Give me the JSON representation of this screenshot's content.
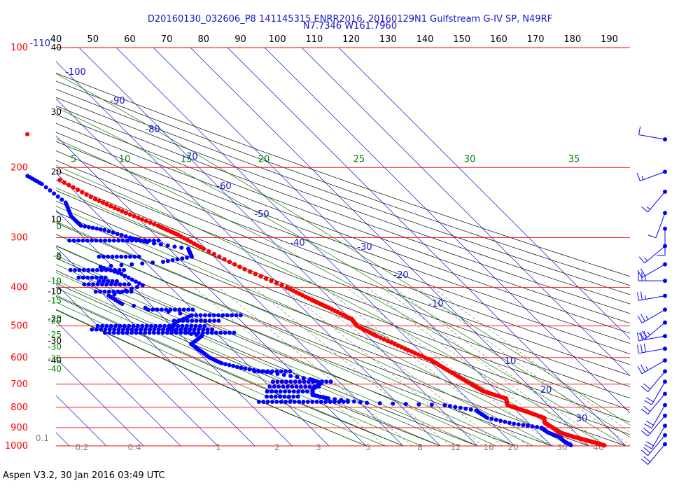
{
  "title_line1": "D20160130_032606_P8 141145315 ENRR2016, 20160129N1 Gulfstream G-IV SP, N49RF",
  "title_line2": "N7.7346 W161.7960",
  "footer": "Aspen V3.2, 30 Jan 2016  03:49 UTC",
  "colors": {
    "isobar": "#ff0000",
    "isotherm": "#1414c8",
    "dry_adiabat": "#000000",
    "moist_adiabat": "#008000",
    "mixing_ratio": "#808080",
    "temperature": "#ff0000",
    "dewpoint": "#0000ff",
    "wind": "#0000ff",
    "title": "#1414c8"
  },
  "chart_data": {
    "type": "skew-t",
    "pressure_axis": {
      "unit": "hPa",
      "range": [
        100,
        1000
      ],
      "scale": "log",
      "levels": [
        100,
        200,
        300,
        400,
        500,
        600,
        700,
        800,
        900,
        1000
      ],
      "labels": [
        "100",
        "200",
        "300",
        "400",
        "500",
        "600",
        "700",
        "800",
        "900",
        "1000"
      ],
      "extra_labels": [
        "-110",
        "0.1"
      ]
    },
    "top_axis": {
      "ticks": [
        "40",
        "50",
        "60",
        "70",
        "80",
        "90",
        "100",
        "110",
        "120",
        "130",
        "140",
        "150",
        "160",
        "170",
        "180",
        "190"
      ]
    },
    "left_secondary_ticks": [
      "40",
      "30",
      "20",
      "10",
      "0",
      "-10",
      "-20",
      "-30",
      "-40"
    ],
    "isotherm_labels": [
      "-100",
      "-90",
      "-80",
      "-70",
      "-60",
      "-50",
      "-40",
      "-30",
      "-20",
      "-10",
      "10",
      "20",
      "30"
    ],
    "theta_e_labels": [
      "5",
      "10",
      "15",
      "20",
      "25",
      "30",
      "35"
    ],
    "left_green_labels": [
      "0",
      "-5",
      "-10",
      "-15",
      "-20",
      "-25",
      "-30",
      "-35",
      "-40"
    ],
    "mixing_ratio_labels": [
      "0.2",
      "0.4",
      "1",
      "2",
      "3",
      "5",
      "8",
      "12",
      "16",
      "20",
      "30",
      "40"
    ],
    "temperature_profile": [
      {
        "p": 215,
        "t": -50.9
      },
      {
        "p": 240,
        "t": -46.5
      },
      {
        "p": 260,
        "t": -41.9
      },
      {
        "p": 280,
        "t": -36.7
      },
      {
        "p": 295,
        "t": -33.8
      },
      {
        "p": 320,
        "t": -30.7
      },
      {
        "p": 360,
        "t": -25.1
      },
      {
        "p": 400,
        "t": -18.6
      },
      {
        "p": 430,
        "t": -15.3
      },
      {
        "p": 450,
        "t": -12.8
      },
      {
        "p": 480,
        "t": -9.7
      },
      {
        "p": 500,
        "t": -10.1
      },
      {
        "p": 530,
        "t": -7.5
      },
      {
        "p": 570,
        "t": -3.3
      },
      {
        "p": 610,
        "t": 0.7
      },
      {
        "p": 650,
        "t": 2.6
      },
      {
        "p": 700,
        "t": 5.0
      },
      {
        "p": 730,
        "t": 6.4
      },
      {
        "p": 760,
        "t": 10.5
      },
      {
        "p": 790,
        "t": 9.1
      },
      {
        "p": 820,
        "t": 12.5
      },
      {
        "p": 850,
        "t": 15.5
      },
      {
        "p": 875,
        "t": 14.4
      },
      {
        "p": 900,
        "t": 15.2
      },
      {
        "p": 925,
        "t": 15.7
      },
      {
        "p": 950,
        "t": 18.5
      },
      {
        "p": 975,
        "t": 21.9
      },
      {
        "p": 1000,
        "t": 24.7
      }
    ],
    "isolated_temperature_point": {
      "p": 165,
      "t": -47.3
    },
    "dewpoint_profile": [
      {
        "p": 210,
        "t": -58.5
      },
      {
        "p": 220,
        "t": -56.8
      },
      {
        "p": 245,
        "t": -55.4
      },
      {
        "p": 265,
        "t": -57.6
      },
      {
        "p": 280,
        "t": -57.5
      },
      {
        "p": 287,
        "t": -52.3
      },
      {
        "p": 300,
        "t": -47.5
      },
      {
        "p": 308,
        "t": -44.1
      },
      {
        "p": 320,
        "t": -34.8
      },
      {
        "p": 335,
        "t": -36.0
      },
      {
        "p": 345,
        "t": -45.1
      },
      {
        "p": 355,
        "t": -63.3
      },
      {
        "p": 370,
        "t": -59.6
      },
      {
        "p": 395,
        "t": -56.9
      },
      {
        "p": 420,
        "t": -68.9
      },
      {
        "p": 440,
        "t": -67.5
      },
      {
        "p": 470,
        "t": -51.8
      },
      {
        "p": 490,
        "t": -58.2
      },
      {
        "p": 510,
        "t": -61.4
      },
      {
        "p": 530,
        "t": -54.7
      },
      {
        "p": 555,
        "t": -59.7
      },
      {
        "p": 580,
        "t": -58.9
      },
      {
        "p": 600,
        "t": -58.4
      },
      {
        "p": 620,
        "t": -56.7
      },
      {
        "p": 640,
        "t": -51.8
      },
      {
        "p": 655,
        "t": -45.9
      },
      {
        "p": 680,
        "t": -37.1
      },
      {
        "p": 695,
        "t": -35.1
      },
      {
        "p": 720,
        "t": -39.1
      },
      {
        "p": 745,
        "t": -40.7
      },
      {
        "p": 760,
        "t": -37.4
      },
      {
        "p": 780,
        "t": -28.2
      },
      {
        "p": 790,
        "t": -7.8
      },
      {
        "p": 815,
        "t": -0.8
      },
      {
        "p": 850,
        "t": 0.2
      },
      {
        "p": 880,
        "t": 5.8
      },
      {
        "p": 900,
        "t": 12.2
      },
      {
        "p": 925,
        "t": 12.6
      },
      {
        "p": 950,
        "t": 14.5
      },
      {
        "p": 975,
        "t": 14.6
      },
      {
        "p": 1000,
        "t": 15.6
      }
    ],
    "dewpoint_horizontal_excursions": [
      {
        "p": 305,
        "t_min": -64.6,
        "t_max": -40.0
      },
      {
        "p": 335,
        "t_min": -61.0,
        "t_max": -50.0
      },
      {
        "p": 362,
        "t_min": -72.3,
        "t_max": -57.0
      },
      {
        "p": 378,
        "t_min": -72.1,
        "t_max": -64.0
      },
      {
        "p": 386,
        "t_min": -67.6,
        "t_max": -62.0
      },
      {
        "p": 393,
        "t_min": -72.4,
        "t_max": -60.0
      },
      {
        "p": 410,
        "t_min": -71.3,
        "t_max": -61.0
      },
      {
        "p": 455,
        "t_min": -62.0,
        "t_max": -49.0
      },
      {
        "p": 470,
        "t_min": -51.8,
        "t_max": -38.0
      },
      {
        "p": 485,
        "t_min": -58.0,
        "t_max": -45.0
      },
      {
        "p": 500,
        "t_min": -80.0,
        "t_max": -50.0
      },
      {
        "p": 510,
        "t_min": -82.5,
        "t_max": -50.0
      },
      {
        "p": 520,
        "t_min": -79.9,
        "t_max": -45.0
      },
      {
        "p": 650,
        "t_min": -50.0,
        "t_max": -40.0
      },
      {
        "p": 690,
        "t_min": -47.8,
        "t_max": -32.0
      },
      {
        "p": 710,
        "t_min": -50.0,
        "t_max": -36.0
      },
      {
        "p": 730,
        "t_min": -52.0,
        "t_max": -40.0
      },
      {
        "p": 752,
        "t_min": -53.5,
        "t_max": -44.0
      },
      {
        "p": 775,
        "t_min": -57.0,
        "t_max": -32.0
      }
    ],
    "wind_barbs": [
      {
        "p": 170,
        "dir": 280,
        "spd": 10
      },
      {
        "p": 205,
        "dir": 250,
        "spd": 15
      },
      {
        "p": 230,
        "dir": 220,
        "spd": 15
      },
      {
        "p": 260,
        "dir": 200,
        "spd": 10
      },
      {
        "p": 285,
        "dir": 180,
        "spd": 10
      },
      {
        "p": 315,
        "dir": 230,
        "spd": 15
      },
      {
        "p": 350,
        "dir": 240,
        "spd": 20
      },
      {
        "p": 385,
        "dir": 270,
        "spd": 25
      },
      {
        "p": 420,
        "dir": 260,
        "spd": 25
      },
      {
        "p": 455,
        "dir": 240,
        "spd": 25
      },
      {
        "p": 490,
        "dir": 230,
        "spd": 25
      },
      {
        "p": 530,
        "dir": 260,
        "spd": 30
      },
      {
        "p": 570,
        "dir": 260,
        "spd": 30
      },
      {
        "p": 610,
        "dir": 240,
        "spd": 25
      },
      {
        "p": 650,
        "dir": 220,
        "spd": 20
      },
      {
        "p": 690,
        "dir": 210,
        "spd": 20
      },
      {
        "p": 740,
        "dir": 220,
        "spd": 20
      },
      {
        "p": 790,
        "dir": 210,
        "spd": 20
      },
      {
        "p": 840,
        "dir": 220,
        "spd": 20
      },
      {
        "p": 890,
        "dir": 210,
        "spd": 20
      },
      {
        "p": 940,
        "dir": 220,
        "spd": 20
      },
      {
        "p": 990,
        "dir": 220,
        "spd": 20
      }
    ]
  }
}
